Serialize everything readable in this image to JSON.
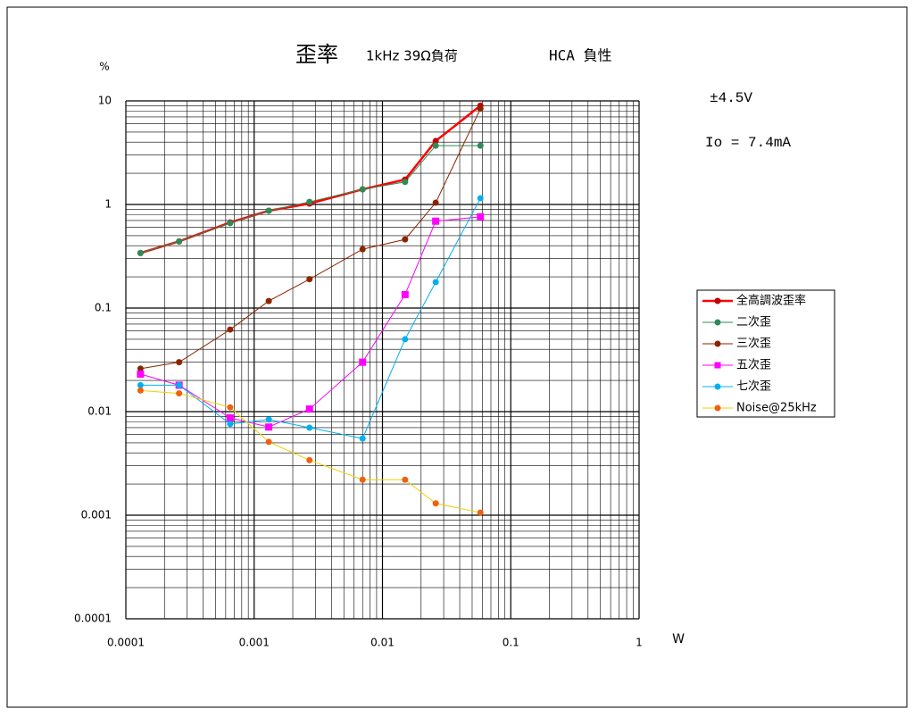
{
  "chart_data": {
    "type": "line",
    "title": "歪率",
    "subtitle": "1kHz 39Ω負荷",
    "annotations": [
      "HCA 負性",
      "±4.5V",
      "Io = 7.4mA"
    ],
    "y_label": "%",
    "x_label": "W",
    "log_x": true,
    "log_y": true,
    "grid": true,
    "minor_grid": true,
    "legend": "right",
    "xlim": [
      0.0001,
      1
    ],
    "xticks": [
      0.0001,
      0.001,
      0.01,
      0.1,
      1
    ],
    "ylim": [
      0.0001,
      10
    ],
    "yticks": [
      10,
      1,
      0.1,
      0.01,
      0.001,
      0.0001
    ],
    "x": [
      0.00013,
      0.00026,
      0.00065,
      0.0013,
      0.0027,
      0.007,
      0.015,
      0.026,
      0.058
    ],
    "series": [
      {
        "name": "全高調波歪率",
        "color": "#ff0000",
        "marker": "circle",
        "marker_color": "#c00000",
        "line_width": 2.5,
        "values": [
          0.34,
          0.44,
          0.67,
          0.87,
          1.02,
          1.4,
          1.74,
          4.1,
          9
        ]
      },
      {
        "name": "二次歪",
        "color": "#2e8b57",
        "marker": "circle",
        "marker_color": "#2e8b57",
        "line_width": 1,
        "values": [
          0.34,
          0.44,
          0.66,
          0.87,
          1.06,
          1.4,
          1.65,
          3.7,
          3.7
        ]
      },
      {
        "name": "三次歪",
        "color": "#8b2500",
        "marker": "circle",
        "marker_color": "#8b2500",
        "line_width": 1,
        "values": [
          0.026,
          0.03,
          0.062,
          0.117,
          0.19,
          0.37,
          0.46,
          1.04,
          8.4
        ]
      },
      {
        "name": "五次歪",
        "color": "#ff00ff",
        "marker": "square",
        "marker_color": "#ff00ff",
        "line_width": 1,
        "values": [
          0.023,
          0.018,
          0.0087,
          0.0071,
          0.0106,
          0.03,
          0.135,
          0.69,
          0.76
        ]
      },
      {
        "name": "七次歪",
        "color": "#00b0f0",
        "marker": "circle",
        "marker_color": "#00b0f0",
        "line_width": 1,
        "values": [
          0.018,
          0.018,
          0.0076,
          0.0084,
          0.007,
          0.0055,
          0.05,
          0.178,
          1.15
        ]
      },
      {
        "name": "Noise@25kHz",
        "color": "#f0d000",
        "marker": "circle",
        "marker_color": "#f06010",
        "line_width": 1,
        "values": [
          0.016,
          0.015,
          0.011,
          0.0051,
          0.0034,
          0.0022,
          0.0022,
          0.0013,
          0.00106
        ]
      }
    ]
  }
}
